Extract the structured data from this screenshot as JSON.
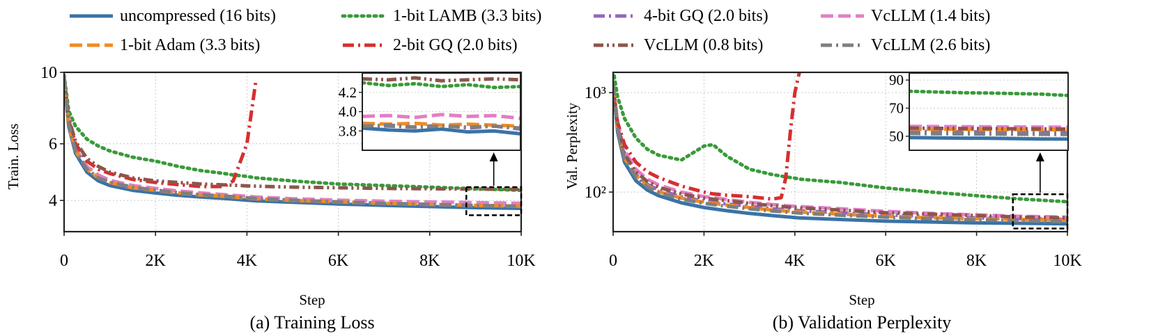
{
  "legend": [
    {
      "label": "uncompressed (16 bits)",
      "color": "#3a73a6",
      "dash": "solid"
    },
    {
      "label": "1-bit LAMB (3.3 bits)",
      "color": "#3a9a3a",
      "dash": "dotted"
    },
    {
      "label": "4-bit GQ (2.0 bits)",
      "color": "#9467bd",
      "dash": "dashdot"
    },
    {
      "label": "VcLLM (1.4 bits)",
      "color": "#e27fc6",
      "dash": "dashed"
    },
    {
      "label": "1-bit Adam (3.3 bits)",
      "color": "#f08a24",
      "dash": "dashed"
    },
    {
      "label": "2-bit GQ (2.0 bits)",
      "color": "#d62f2f",
      "dash": "dashdot"
    },
    {
      "label": "VcLLM (0.8 bits)",
      "color": "#8c564b",
      "dash": "dashdotdot"
    },
    {
      "label": "VcLLM (2.6 bits)",
      "color": "#7f7f7f",
      "dash": "dashdot"
    }
  ],
  "chart_data": [
    {
      "type": "line",
      "caption": "(a) Training Loss",
      "xlabel": "Step",
      "ylabel": "Train. Loss",
      "yscale": "log",
      "xlim": [
        0,
        10000
      ],
      "ylim": [
        3.2,
        10
      ],
      "xticks": [
        0,
        2000,
        4000,
        6000,
        8000,
        10000
      ],
      "xtick_labels": [
        "0",
        "2K",
        "4K",
        "6K",
        "8K",
        "10K"
      ],
      "yticks": [
        4,
        6,
        10
      ],
      "ytick_labels": [
        "4",
        "6",
        "10"
      ],
      "grid": true,
      "x": [
        0,
        100,
        250,
        500,
        750,
        1000,
        1500,
        2000,
        2500,
        3000,
        3500,
        3700,
        4000,
        4200,
        5000,
        6000,
        7000,
        8000,
        9000,
        10000
      ],
      "series": [
        {
          "legend_index": 0,
          "values": [
            9.6,
            6.8,
            5.6,
            4.9,
            4.6,
            4.45,
            4.3,
            4.22,
            4.15,
            4.1,
            4.06,
            4.04,
            4.01,
            3.99,
            3.95,
            3.9,
            3.86,
            3.83,
            3.8,
            3.78
          ]
        },
        {
          "legend_index": 1,
          "values": [
            9.8,
            7.6,
            6.8,
            6.2,
            5.9,
            5.7,
            5.45,
            5.3,
            5.1,
            4.95,
            4.85,
            4.8,
            4.75,
            4.7,
            4.6,
            4.5,
            4.45,
            4.4,
            4.35,
            4.3
          ]
        },
        {
          "legend_index": 2,
          "values": [
            9.6,
            6.9,
            5.7,
            5.0,
            4.7,
            4.55,
            4.38,
            4.3,
            4.22,
            4.16,
            4.12,
            4.1,
            4.07,
            4.05,
            4.0,
            3.95,
            3.91,
            3.88,
            3.85,
            3.83
          ]
        },
        {
          "legend_index": 3,
          "values": [
            9.6,
            7.0,
            5.8,
            5.1,
            4.8,
            4.62,
            4.45,
            4.36,
            4.28,
            4.22,
            4.17,
            4.15,
            4.12,
            4.1,
            4.05,
            4.01,
            3.98,
            3.96,
            3.94,
            3.92
          ]
        },
        {
          "legend_index": 4,
          "values": [
            9.6,
            6.9,
            5.7,
            5.0,
            4.7,
            4.55,
            4.38,
            4.3,
            4.22,
            4.16,
            4.12,
            4.1,
            4.07,
            4.05,
            4.0,
            3.96,
            3.92,
            3.89,
            3.86,
            3.84
          ]
        },
        {
          "legend_index": 5,
          "values": [
            9.6,
            7.1,
            6.0,
            5.3,
            5.0,
            4.85,
            4.65,
            4.55,
            4.48,
            4.42,
            4.42,
            4.6,
            6.0,
            9.5,
            null,
            null,
            null,
            null,
            null,
            null
          ]
        },
        {
          "legend_index": 6,
          "values": [
            9.6,
            7.2,
            6.1,
            5.4,
            5.1,
            4.9,
            4.7,
            4.6,
            4.55,
            4.5,
            4.47,
            4.46,
            4.44,
            4.43,
            4.4,
            4.38,
            4.36,
            4.35,
            4.34,
            4.33
          ]
        },
        {
          "legend_index": 7,
          "values": [
            9.6,
            6.9,
            5.7,
            5.0,
            4.7,
            4.56,
            4.4,
            4.31,
            4.23,
            4.17,
            4.13,
            4.11,
            4.08,
            4.06,
            4.01,
            3.96,
            3.92,
            3.89,
            3.86,
            3.84
          ]
        }
      ],
      "inset": {
        "xlim": [
          8800,
          10000
        ],
        "ylim": [
          3.6,
          4.4
        ],
        "yticks": [
          3.8,
          4.0,
          4.2
        ],
        "ytick_labels": [
          "3.8",
          "4.0",
          "4.2"
        ],
        "zoom_box": {
          "xlim": [
            8800,
            10000
          ],
          "ylim": [
            3.6,
            4.4
          ]
        },
        "x": [
          8800,
          9000,
          9200,
          9400,
          9600,
          9800,
          10000
        ],
        "series": [
          {
            "legend_index": 0,
            "values": [
              3.83,
              3.81,
              3.8,
              3.82,
              3.79,
              3.8,
              3.77
            ]
          },
          {
            "legend_index": 1,
            "values": [
              4.3,
              4.27,
              4.29,
              4.26,
              4.28,
              4.25,
              4.26
            ]
          },
          {
            "legend_index": 2,
            "values": [
              3.86,
              3.85,
              3.84,
              3.86,
              3.83,
              3.85,
              3.82
            ]
          },
          {
            "legend_index": 3,
            "values": [
              3.95,
              3.96,
              3.94,
              3.97,
              3.95,
              3.96,
              3.93
            ]
          },
          {
            "legend_index": 4,
            "values": [
              3.88,
              3.87,
              3.88,
              3.86,
              3.87,
              3.86,
              3.85
            ]
          },
          {
            "legend_index": 6,
            "values": [
              4.34,
              4.33,
              4.35,
              4.32,
              4.33,
              4.34,
              4.33
            ]
          },
          {
            "legend_index": 7,
            "values": [
              3.85,
              3.86,
              3.84,
              3.85,
              3.84,
              3.85,
              3.83
            ]
          }
        ]
      }
    },
    {
      "type": "line",
      "caption": "(b) Validation Perplexity",
      "xlabel": "Step",
      "ylabel": "Val. Perplexity",
      "yscale": "log",
      "xlim": [
        0,
        10000
      ],
      "ylim": [
        40,
        1600
      ],
      "xticks": [
        0,
        2000,
        4000,
        6000,
        8000,
        10000
      ],
      "xtick_labels": [
        "0",
        "2K",
        "4K",
        "6K",
        "8K",
        "10K"
      ],
      "yticks": [
        100,
        1000
      ],
      "ytick_labels": [
        "10²",
        "10³"
      ],
      "grid": true,
      "x": [
        0,
        100,
        250,
        500,
        750,
        1000,
        1500,
        2000,
        2200,
        2500,
        3000,
        3500,
        3700,
        3800,
        3900,
        4000,
        4100,
        5000,
        6000,
        7000,
        8000,
        9000,
        10000
      ],
      "series": [
        {
          "legend_index": 0,
          "values": [
            1200,
            400,
            200,
            130,
            105,
            92,
            78,
            70,
            68,
            65,
            61,
            58,
            57,
            56.5,
            56,
            55.5,
            55,
            53,
            51,
            50,
            49,
            48.5,
            48
          ]
        },
        {
          "legend_index": 1,
          "values": [
            1700,
            900,
            550,
            350,
            270,
            235,
            210,
            290,
            300,
            230,
            170,
            150,
            145,
            142,
            140,
            138,
            135,
            125,
            110,
            100,
            92,
            85,
            80
          ]
        },
        {
          "legend_index": 2,
          "values": [
            1200,
            450,
            230,
            150,
            120,
            105,
            90,
            81,
            79,
            76,
            72,
            68,
            67,
            66.5,
            66,
            65.5,
            65,
            62,
            59,
            57,
            55,
            54,
            53
          ]
        },
        {
          "legend_index": 3,
          "values": [
            1200,
            500,
            260,
            170,
            135,
            118,
            100,
            90,
            88,
            84,
            79,
            75,
            74,
            73,
            72.5,
            72,
            71.5,
            68,
            64,
            61,
            59,
            57,
            56
          ]
        },
        {
          "legend_index": 4,
          "values": [
            1200,
            440,
            220,
            145,
            116,
            101,
            87,
            79,
            77,
            74,
            70,
            66,
            65,
            64.5,
            64,
            63.5,
            63,
            60,
            57,
            55,
            54,
            53,
            52
          ]
        },
        {
          "legend_index": 5,
          "values": [
            900,
            500,
            300,
            200,
            160,
            140,
            115,
            100,
            96,
            93,
            90,
            85,
            88,
            140,
            400,
            1000,
            1600,
            null,
            null,
            null,
            null,
            null,
            null
          ]
        },
        {
          "legend_index": 6,
          "values": [
            1200,
            470,
            240,
            160,
            128,
            112,
            96,
            87,
            85,
            82,
            77,
            73,
            72,
            71,
            70.5,
            70,
            69.5,
            66,
            62,
            60,
            58,
            56,
            55
          ]
        },
        {
          "legend_index": 7,
          "values": [
            1200,
            430,
            215,
            142,
            113,
            99,
            85,
            77,
            75,
            72,
            68,
            64.5,
            63.5,
            63,
            62.5,
            62,
            61.5,
            58.5,
            56,
            54,
            52.5,
            51.5,
            50.5
          ]
        }
      ],
      "inset": {
        "xlim": [
          8800,
          10000
        ],
        "ylim": [
          40,
          95
        ],
        "yticks": [
          50,
          70,
          90
        ],
        "ytick_labels": [
          "50",
          "70",
          "90"
        ],
        "zoom_box": {
          "xlim": [
            8800,
            10000
          ],
          "ylim": [
            43,
            95
          ]
        },
        "x": [
          8800,
          9000,
          9200,
          9400,
          9600,
          9800,
          10000
        ],
        "series": [
          {
            "legend_index": 0,
            "values": [
              49,
              48.8,
              48.6,
              48.5,
              48.3,
              48.1,
              48
            ]
          },
          {
            "legend_index": 1,
            "values": [
              82,
              81.5,
              81,
              80.8,
              80.4,
              80,
              79
            ]
          },
          {
            "legend_index": 2,
            "values": [
              53.5,
              53.3,
              53.2,
              53,
              53,
              52.9,
              52.8
            ]
          },
          {
            "legend_index": 3,
            "values": [
              57,
              56.9,
              56.8,
              56.7,
              56.6,
              56.5,
              56.4
            ]
          },
          {
            "legend_index": 4,
            "values": [
              55.2,
              55,
              54.9,
              54.8,
              54.7,
              54.6,
              54.5
            ]
          },
          {
            "legend_index": 6,
            "values": [
              55.8,
              55.6,
              55.5,
              55.4,
              55.3,
              55.2,
              55.1
            ]
          },
          {
            "legend_index": 7,
            "values": [
              52,
              51.8,
              51.7,
              51.6,
              51.5,
              51.4,
              51.3
            ]
          }
        ]
      }
    }
  ]
}
